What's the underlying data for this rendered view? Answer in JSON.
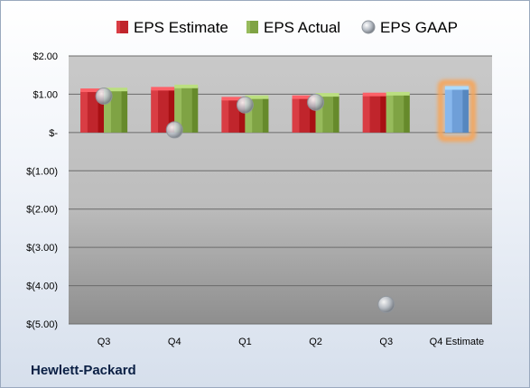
{
  "company": "Hewlett-Packard",
  "chart_data": {
    "type": "bar",
    "categories": [
      "Q3",
      "Q4",
      "Q1",
      "Q2",
      "Q3",
      "Q4 Estimate"
    ],
    "series": [
      {
        "name": "EPS Estimate",
        "values": [
          1.08,
          1.12,
          0.86,
          0.9,
          0.97,
          null
        ],
        "color": "#c0252c"
      },
      {
        "name": "EPS Actual",
        "values": [
          1.1,
          1.18,
          0.9,
          0.96,
          0.99,
          null
        ],
        "color": "#7fa344"
      },
      {
        "name": "EPS GAAP",
        "type": "scatter",
        "values": [
          0.95,
          0.07,
          0.72,
          0.79,
          -4.49,
          null
        ],
        "color": "#b8bec6"
      },
      {
        "name": "Q4 Estimate",
        "values": [
          null,
          null,
          null,
          null,
          null,
          1.14
        ],
        "color": "#6f9fd8",
        "highlight_color": "#f5a65b"
      }
    ],
    "legend": [
      "EPS Estimate",
      "EPS Actual",
      "EPS GAAP"
    ],
    "legend_position": "top",
    "yticks": [
      2.0,
      1.0,
      0.0,
      -1.0,
      -2.0,
      -3.0,
      -4.0,
      -5.0
    ],
    "ytick_labels": [
      "$2.00",
      "$1.00",
      "$-",
      "$(1.00)",
      "$(2.00)",
      "$(3.00)",
      "$(4.00)",
      "$(5.00)"
    ],
    "ylim": [
      -5.0,
      2.0
    ],
    "grid": true
  }
}
